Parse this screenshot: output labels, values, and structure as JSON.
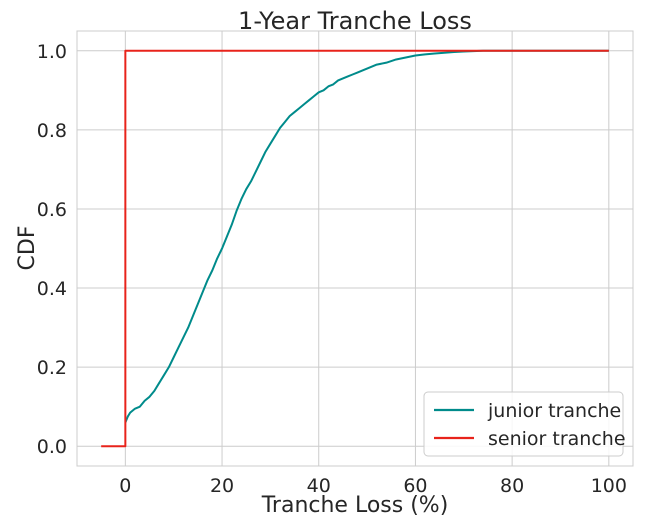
{
  "chart_data": {
    "type": "line",
    "title": "1-Year Tranche Loss",
    "xlabel": "Tranche Loss (%)",
    "ylabel": "CDF",
    "xlim": [
      -10,
      105
    ],
    "ylim": [
      -0.05,
      1.05
    ],
    "xticks": [
      0,
      20,
      40,
      60,
      80,
      100
    ],
    "yticks": [
      0.0,
      0.2,
      0.4,
      0.6,
      0.8,
      1.0
    ],
    "xtick_labels": [
      "0",
      "20",
      "40",
      "60",
      "80",
      "100"
    ],
    "ytick_labels": [
      "0.0",
      "0.2",
      "0.4",
      "0.6",
      "0.8",
      "1.0"
    ],
    "grid": true,
    "legend_position": "lower-right",
    "series": [
      {
        "name": "junior tranche",
        "color": "#008b8b",
        "x": [
          0,
          0.5,
          1,
          2,
          3,
          4,
          5,
          6,
          7,
          8,
          9,
          10,
          11,
          12,
          13,
          14,
          15,
          16,
          17,
          18,
          19,
          20,
          21,
          22,
          23,
          24,
          25,
          26,
          27,
          28,
          29,
          30,
          31,
          32,
          33,
          34,
          35,
          36,
          37,
          38,
          39,
          40,
          41,
          42,
          43,
          44,
          45,
          46,
          47,
          48,
          49,
          50,
          52,
          54,
          56,
          58,
          60,
          62,
          64,
          66,
          68,
          70,
          72,
          74,
          76,
          80,
          100
        ],
        "y": [
          0.06,
          0.075,
          0.085,
          0.095,
          0.1,
          0.115,
          0.125,
          0.14,
          0.16,
          0.18,
          0.2,
          0.225,
          0.25,
          0.275,
          0.3,
          0.33,
          0.36,
          0.39,
          0.42,
          0.445,
          0.475,
          0.5,
          0.53,
          0.56,
          0.595,
          0.625,
          0.65,
          0.67,
          0.695,
          0.72,
          0.745,
          0.765,
          0.785,
          0.805,
          0.82,
          0.835,
          0.845,
          0.855,
          0.865,
          0.875,
          0.885,
          0.895,
          0.9,
          0.91,
          0.915,
          0.925,
          0.93,
          0.935,
          0.94,
          0.945,
          0.95,
          0.955,
          0.965,
          0.97,
          0.978,
          0.983,
          0.988,
          0.991,
          0.993,
          0.995,
          0.997,
          0.998,
          0.999,
          1.0,
          1.0,
          1.0,
          1.0
        ]
      },
      {
        "name": "senior tranche",
        "color": "#e8231b",
        "x": [
          -5,
          0,
          0,
          100
        ],
        "y": [
          0.0,
          0.0,
          1.0,
          1.0
        ]
      }
    ]
  }
}
